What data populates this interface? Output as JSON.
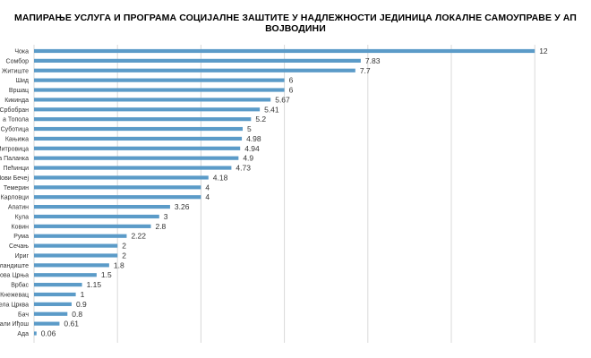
{
  "chart_data": {
    "type": "bar",
    "orientation": "horizontal",
    "title": "МАПИРАЊЕ УСЛУГА И ПРОГРАМА СОЦИЈАЛНЕ ЗАШТИТЕ У НАДЛЕЖНОСТИ ЈЕДИНИЦА ЛОКАЛНЕ САМОУПРАВЕ У АП ВОЈВОДИНИ",
    "categories": [
      "Чока",
      "Сомбор",
      "Житиште",
      "Шид",
      "Вршац",
      "Кикинда",
      "Србобран",
      "а Топола",
      "Суботица",
      "Кањижа",
      "Митровица",
      "а Паланка",
      "Пећинци",
      "Нови Бечеј",
      "Темерин",
      "Карловци",
      "Апатин",
      "Кула",
      "Ковин",
      "Рума",
      "Сечањ",
      "Ириг",
      "Зландиште",
      "Нова Црња",
      "Врбас",
      "Кнежевац",
      "ела Црква",
      "Бач",
      "Мали Иђош",
      "Ада"
    ],
    "values": [
      12,
      7.83,
      7.7,
      6,
      6,
      5.67,
      5.41,
      5.2,
      5,
      4.98,
      4.94,
      4.9,
      4.73,
      4.18,
      4,
      4,
      3.26,
      3,
      2.8,
      2.22,
      2,
      2,
      1.8,
      1.5,
      1.15,
      1,
      0.9,
      0.8,
      0.61,
      0.06
    ],
    "value_labels": [
      "12",
      "7.83",
      "7.7",
      "6",
      "6",
      "5.67",
      "5.41",
      "5.2",
      "5",
      "4.98",
      "4.94",
      "4.9",
      "4.73",
      "4.18",
      "4",
      "4",
      "3.26",
      "3",
      "2.8",
      "2.22",
      "2",
      "2",
      "1.8",
      "1.5",
      "1.15",
      "1",
      "0.9",
      "0.8",
      "0.61",
      "0.06"
    ],
    "xlim": [
      0,
      12
    ],
    "grid": true,
    "legend": "none",
    "bar_color": "#5b9bc8",
    "grid_color": "#d9d9d9"
  }
}
